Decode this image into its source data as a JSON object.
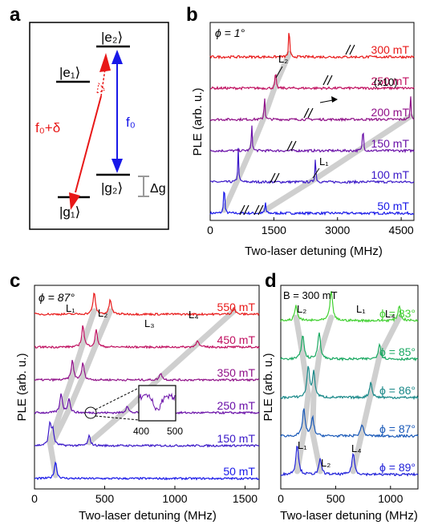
{
  "chart_data": [
    {
      "panel": "a",
      "type": "diagram",
      "levels": [
        "|e₂⟩",
        "|e₁⟩",
        "|g₂⟩",
        "|g₁⟩"
      ],
      "transitions": [
        "f₀+δ",
        "f₀"
      ],
      "splitting": "Δg"
    },
    {
      "panel": "b",
      "type": "line",
      "annotation_angle": "ϕ = 1°",
      "xlabel": "Two-laser detuning (MHz)",
      "ylabel": "PLE (arb. u.)",
      "xlim": [
        0,
        4800
      ],
      "xticks": [
        0,
        1500,
        3000,
        4500
      ],
      "scale_note": "(x10)",
      "series": [
        {
          "name": "50 mT",
          "color": "#1818e8",
          "peaks": [
            {
              "x": 330,
              "h": 1.0
            },
            {
              "x": 1300,
              "h": 0.35
            }
          ]
        },
        {
          "name": "100 mT",
          "color": "#3a18c8",
          "peaks": [
            {
              "x": 660,
              "h": 1.0
            },
            {
              "x": 2480,
              "h": 0.75
            }
          ]
        },
        {
          "name": "150 mT",
          "color": "#6a10a8",
          "peaks": [
            {
              "x": 980,
              "h": 0.8
            },
            {
              "x": 3600,
              "h": 0.8
            }
          ]
        },
        {
          "name": "200 mT",
          "color": "#901088",
          "peaks": [
            {
              "x": 1280,
              "h": 0.75
            },
            {
              "x": 4720,
              "h": 0.75
            }
          ]
        },
        {
          "name": "250 mT",
          "color": "#c01060",
          "peaks": [
            {
              "x": 1540,
              "h": 0.6
            }
          ]
        },
        {
          "name": "300 mT",
          "color": "#e81818",
          "peaks": [
            {
              "x": 1860,
              "h": 1.0
            }
          ]
        }
      ],
      "labels": [
        "L₂",
        "L₁"
      ]
    },
    {
      "panel": "c",
      "type": "line",
      "annotation_angle": "ϕ = 87°",
      "xlabel": "Two-laser detuning (MHz)",
      "ylabel": "PLE (arb. u.)",
      "xlim": [
        0,
        1600
      ],
      "xticks": [
        0,
        500,
        1000,
        1500
      ],
      "inset_ticks": [
        "400",
        "500"
      ],
      "series": [
        {
          "name": "50 mT",
          "color": "#1818e8",
          "peaks": [
            {
              "x": 150,
              "h": 0.7
            }
          ]
        },
        {
          "name": "150 mT",
          "color": "#3a18c8",
          "peaks": [
            {
              "x": 110,
              "h": 0.9
            },
            {
              "x": 130,
              "h": 0.6
            },
            {
              "x": 390,
              "h": 0.4
            }
          ]
        },
        {
          "name": "250 mT",
          "color": "#6a10a8",
          "peaks": [
            {
              "x": 190,
              "h": 0.8
            },
            {
              "x": 245,
              "h": 0.6
            },
            {
              "x": 660,
              "h": 0.3
            }
          ]
        },
        {
          "name": "350 mT",
          "color": "#901088",
          "peaks": [
            {
              "x": 270,
              "h": 0.8
            },
            {
              "x": 345,
              "h": 0.7
            },
            {
              "x": 900,
              "h": 0.3
            }
          ]
        },
        {
          "name": "450 mT",
          "color": "#c01060",
          "peaks": [
            {
              "x": 345,
              "h": 0.9
            },
            {
              "x": 440,
              "h": 0.7
            },
            {
              "x": 1160,
              "h": 0.3
            }
          ]
        },
        {
          "name": "550 mT",
          "color": "#e81818",
          "peaks": [
            {
              "x": 425,
              "h": 0.9
            },
            {
              "x": 540,
              "h": 0.6
            },
            {
              "x": 1420,
              "h": 0.3
            }
          ]
        }
      ],
      "labels": [
        "L₁",
        "L₂",
        "L₃",
        "L₄"
      ]
    },
    {
      "panel": "d",
      "type": "line",
      "annotation_field": "B = 300 mT",
      "xlabel": "Two-laser detuning (MHz)",
      "ylabel": "PLE (arb. u.)",
      "xlim": [
        0,
        1250
      ],
      "xticks": [
        0,
        500,
        1000
      ],
      "series": [
        {
          "name": "ϕ = 89°",
          "color": "#2020d8",
          "peaks": [
            {
              "x": 150,
              "h": 1.0
            },
            {
              "x": 360,
              "h": 0.5
            },
            {
              "x": 660,
              "h": 0.7
            }
          ]
        },
        {
          "name": "ϕ = 87°",
          "color": "#1858b8",
          "peaks": [
            {
              "x": 210,
              "h": 0.9
            },
            {
              "x": 290,
              "h": 0.6
            },
            {
              "x": 740,
              "h": 0.4
            }
          ]
        },
        {
          "name": "ϕ = 86°",
          "color": "#188888",
          "peaks": [
            {
              "x": 250,
              "h": 1.0
            },
            {
              "x": 300,
              "h": 0.8
            },
            {
              "x": 820,
              "h": 0.5
            }
          ]
        },
        {
          "name": "ϕ = 85°",
          "color": "#18a860",
          "peaks": [
            {
              "x": 200,
              "h": 0.8
            },
            {
              "x": 350,
              "h": 0.9
            },
            {
              "x": 900,
              "h": 0.5
            }
          ]
        },
        {
          "name": "ϕ = 83°",
          "color": "#40d030",
          "peaks": [
            {
              "x": 140,
              "h": 0.5
            },
            {
              "x": 460,
              "h": 1.0
            },
            {
              "x": 1080,
              "h": 0.5
            }
          ]
        }
      ],
      "labels": [
        "L₂",
        "L₁",
        "L₄",
        "L₁",
        "L₂",
        "L₄"
      ]
    }
  ]
}
